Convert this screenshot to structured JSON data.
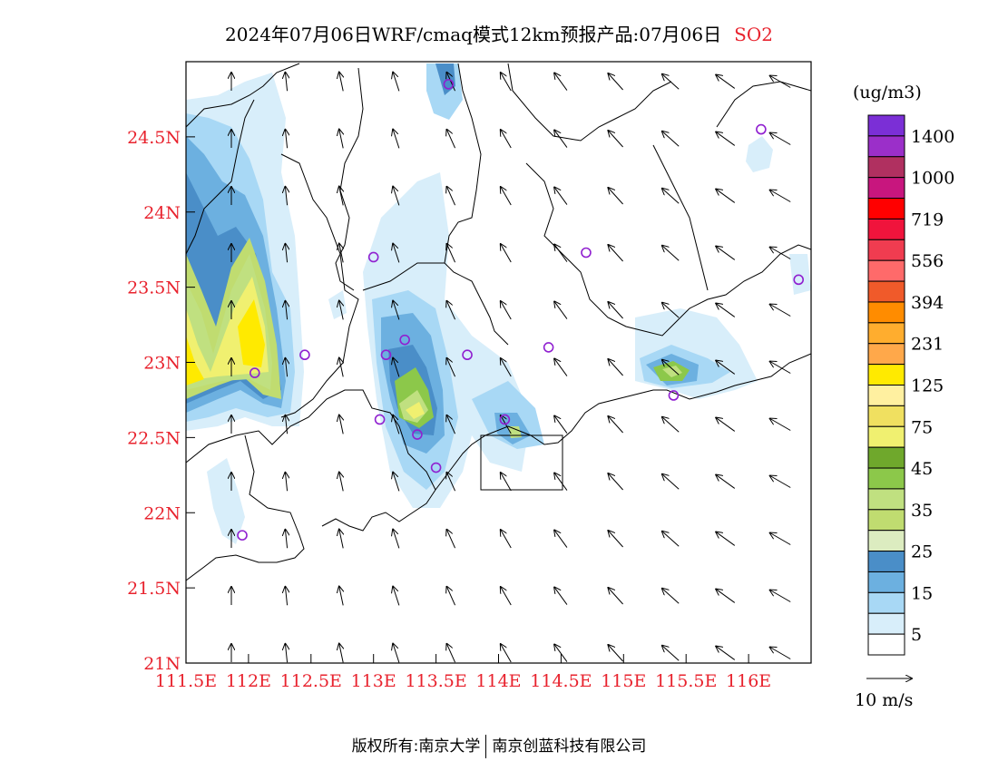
{
  "title": {
    "text": "2024年07月06日WRF/cmaq模式12km预报产品:07月06日",
    "pollutant": "SO2"
  },
  "footer": {
    "left": "版权所有:南京大学",
    "right": "南京创蓝科技有限公司"
  },
  "axes": {
    "x_ticks": [
      "111.5E",
      "112E",
      "112.5E",
      "113E",
      "113.5E",
      "114E",
      "114.5E",
      "115E",
      "115.5E",
      "116E"
    ],
    "y_ticks": [
      "24.5N",
      "24N",
      "23.5N",
      "23N",
      "22.5N",
      "22N",
      "21.5N",
      "21N"
    ]
  },
  "colorbar": {
    "unit": "(ug/m3)",
    "labels": [
      "1400",
      "1000",
      "719",
      "556",
      "394",
      "231",
      "125",
      "75",
      "45",
      "35",
      "25",
      "15",
      "5"
    ],
    "colors": [
      "#7b2fd6",
      "#9b2fc9",
      "#b03060",
      "#c8167e",
      "#ff0000",
      "#f0143c",
      "#f03c50",
      "#ff6a6a",
      "#f05a2a",
      "#ff8c00",
      "#ffad2e",
      "#ffa84a",
      "#ffea00",
      "#fff0a0",
      "#f0e060",
      "#f0f070",
      "#6fa82c",
      "#8cc84a",
      "#c0e080",
      "#c0dc70",
      "#dcecc0",
      "#4a8ec8",
      "#6cb0e0",
      "#a8d8f5",
      "#d8eefa",
      "#ffffff"
    ]
  },
  "wind": {
    "reference_label": "10 m/s"
  },
  "map": {
    "lon_range": [
      111.5,
      116.5
    ],
    "lat_range": [
      21.0,
      25.0
    ],
    "stations": [
      {
        "lon": 113.6,
        "lat": 24.85
      },
      {
        "lon": 116.1,
        "lat": 24.55
      },
      {
        "lon": 113.0,
        "lat": 23.7
      },
      {
        "lon": 114.7,
        "lat": 23.73
      },
      {
        "lon": 116.4,
        "lat": 23.55
      },
      {
        "lon": 113.25,
        "lat": 23.15
      },
      {
        "lon": 112.45,
        "lat": 23.05
      },
      {
        "lon": 113.1,
        "lat": 23.05
      },
      {
        "lon": 113.75,
        "lat": 23.05
      },
      {
        "lon": 114.4,
        "lat": 23.1
      },
      {
        "lon": 112.05,
        "lat": 22.93
      },
      {
        "lon": 115.4,
        "lat": 22.78
      },
      {
        "lon": 113.05,
        "lat": 22.62
      },
      {
        "lon": 114.05,
        "lat": 22.62
      },
      {
        "lon": 113.35,
        "lat": 22.52
      },
      {
        "lon": 113.5,
        "lat": 22.3
      },
      {
        "lon": 111.95,
        "lat": 21.85
      }
    ]
  }
}
